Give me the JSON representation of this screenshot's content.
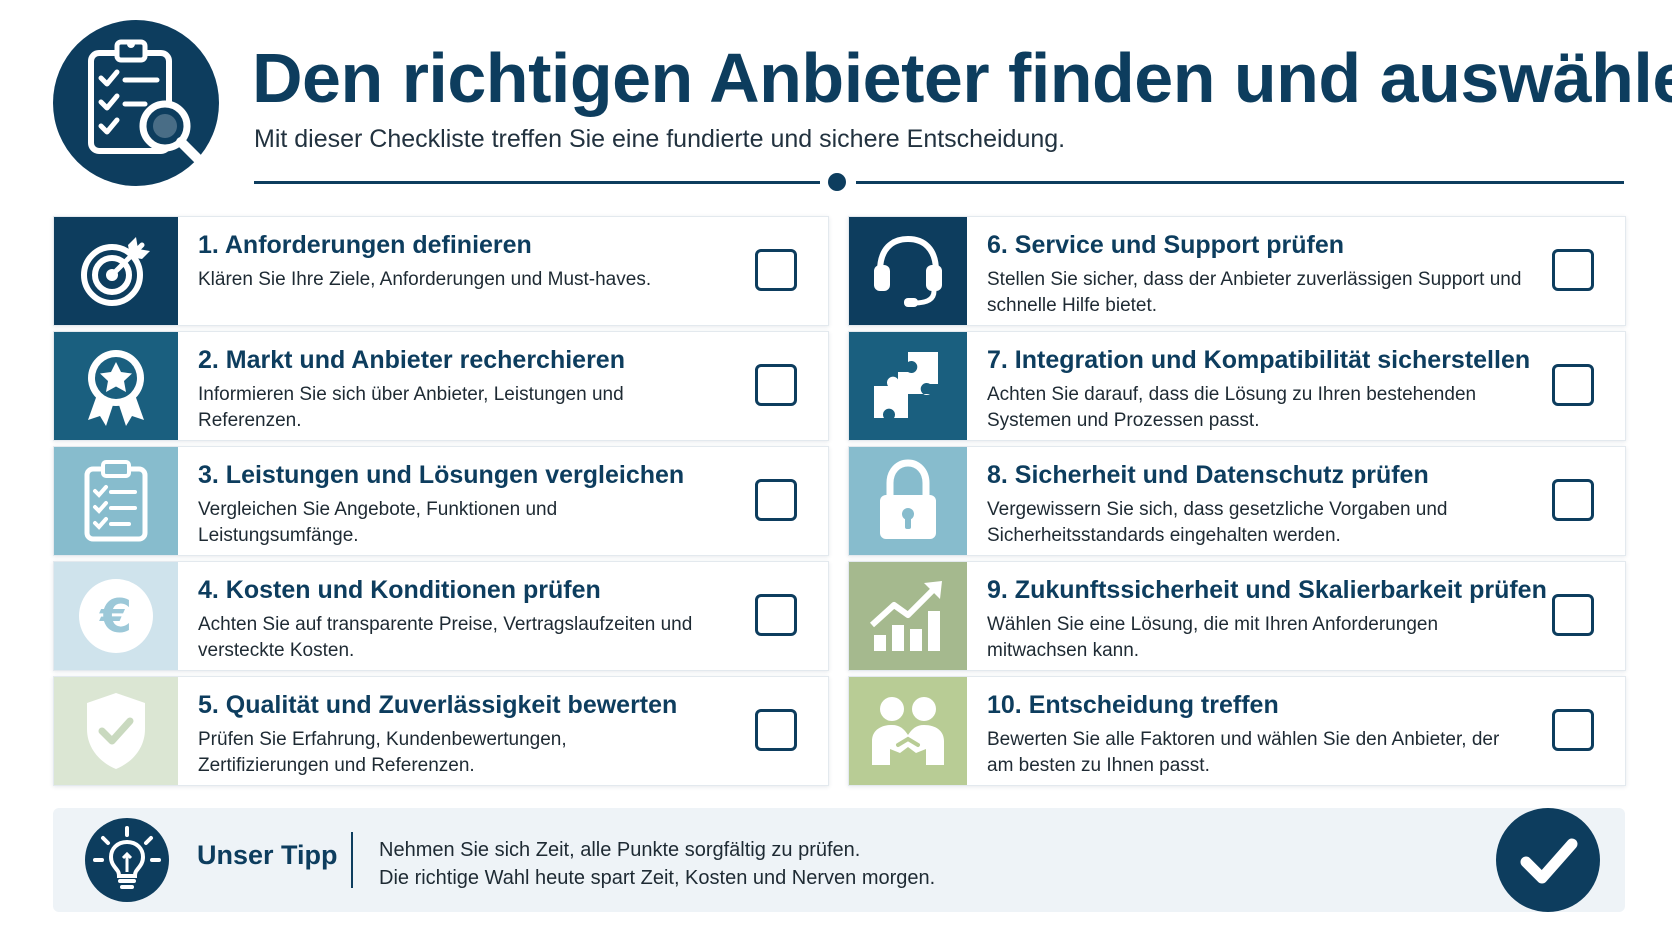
{
  "header": {
    "title": "Den richtigen Anbieter finden und auswählen",
    "subtitle": "Mit dieser Checkliste treffen Sie eine fundierte und sichere Entscheidung.",
    "logo_icon": "clipboard-magnifier-icon"
  },
  "colors": {
    "primary": "#0d3d5e",
    "teal": "#1a5f7f",
    "lightblue": "#87bccd",
    "paleblue": "#cfe3ec",
    "sage": "#dbe6d3",
    "olive": "#a5b98e",
    "green": "#b8cc95"
  },
  "items": [
    {
      "title": "1. Anforderungen definieren",
      "desc": "Klären Sie Ihre Ziele, Anforderungen und Must-haves.",
      "icon": "target-icon"
    },
    {
      "title": "2. Markt und Anbieter recherchieren",
      "desc": "Informieren Sie sich über Anbieter, Leistungen und Referenzen.",
      "icon": "award-badge-icon"
    },
    {
      "title": "3. Leistungen und Lösungen vergleichen",
      "desc": "Vergleichen Sie Angebote, Funktionen und Leistungsumfänge.",
      "icon": "clipboard-checklist-icon"
    },
    {
      "title": "4. Kosten und Konditionen prüfen",
      "desc": "Achten Sie auf transparente Preise, Vertragslaufzeiten und versteckte Kosten.",
      "icon": "euro-coin-icon",
      "euro_symbol": "€"
    },
    {
      "title": "5. Qualität und Zuverlässigkeit bewerten",
      "desc": "Prüfen Sie Erfahrung, Kundenbewertungen, Zertifizierungen und Referenzen.",
      "icon": "shield-check-icon"
    },
    {
      "title": "6. Service und Support prüfen",
      "desc": "Stellen Sie sicher, dass der Anbieter zuverlässigen Support und schnelle Hilfe bietet.",
      "icon": "headset-icon"
    },
    {
      "title": "7. Integration und Kompatibilität sicherstellen",
      "desc": "Achten Sie darauf, dass die Lösung zu Ihren bestehenden Systemen und Prozessen passt.",
      "icon": "puzzle-icon"
    },
    {
      "title": "8. Sicherheit und Datenschutz prüfen",
      "desc": "Vergewissern Sie sich, dass gesetzliche Vorgaben und Sicherheitsstandards eingehalten werden.",
      "icon": "padlock-icon"
    },
    {
      "title": "9. Zukunftssicherheit und Skalierbarkeit prüfen",
      "desc": "Wählen Sie eine Lösung, die mit Ihren Anforderungen mitwachsen kann.",
      "icon": "growth-chart-icon"
    },
    {
      "title": "10. Entscheidung treffen",
      "desc": "Bewerten Sie alle Faktoren und wählen Sie den Anbieter, der am besten zu Ihnen passt.",
      "icon": "handshake-people-icon"
    }
  ],
  "tip": {
    "label": "Unser Tipp",
    "line1": "Nehmen Sie sich Zeit, alle Punkte sorgfältig zu prüfen.",
    "line2": "Die richtige Wahl heute spart Zeit, Kosten und Nerven morgen.",
    "icon": "lightbulb-icon",
    "badge_icon": "checkmark-icon"
  }
}
